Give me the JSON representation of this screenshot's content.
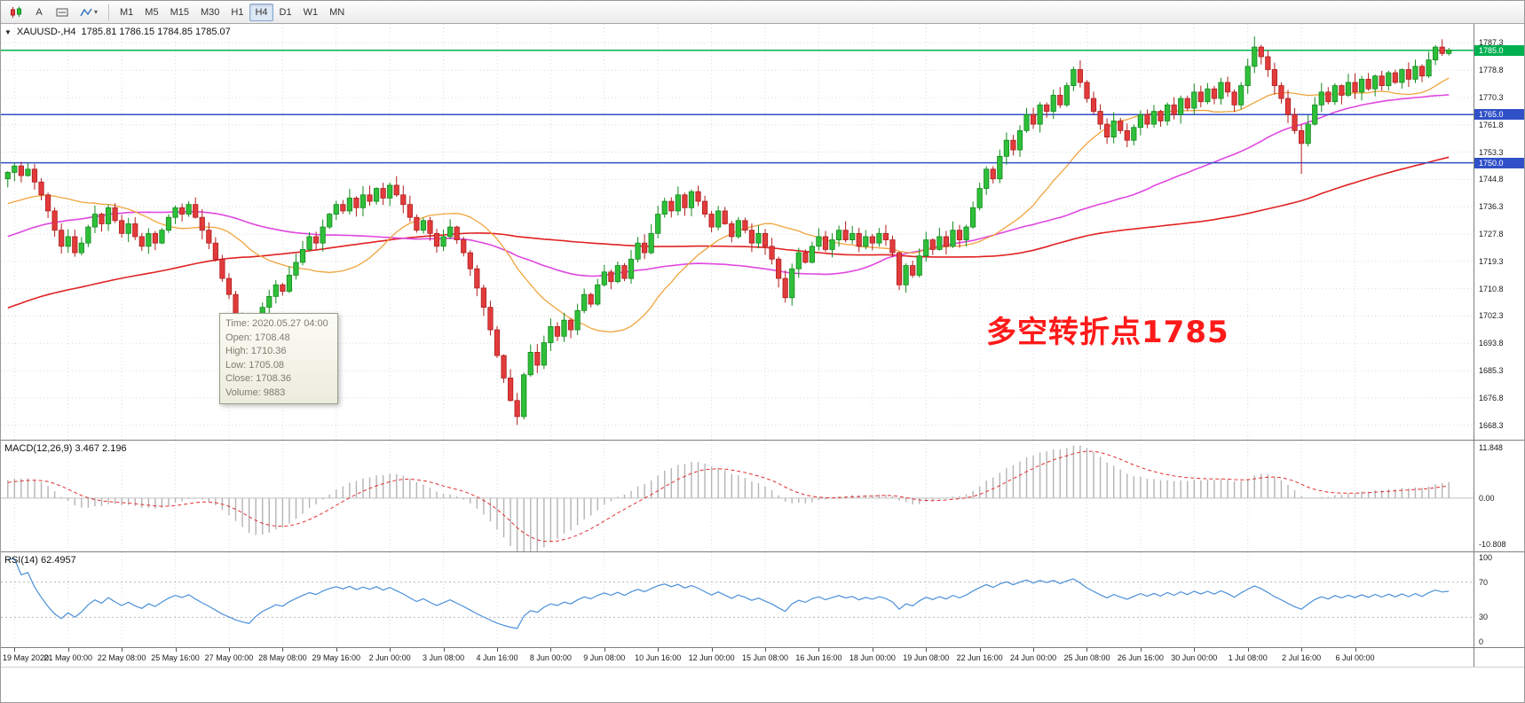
{
  "toolbar": {
    "icons": {
      "text_tool": "A",
      "caret": "▾"
    },
    "timeframes": [
      "M1",
      "M5",
      "M15",
      "M30",
      "H1",
      "H4",
      "D1",
      "W1",
      "MN"
    ],
    "active_timeframe": "H4"
  },
  "main_chart": {
    "collapse_icon": "▼",
    "symbol": "XAUUSD-,H4",
    "ohlc_text": "1785.81 1786.15 1784.85 1785.07",
    "annotation": "多空转折点1785",
    "price_labels": [
      1787.3,
      1778.8,
      1770.3,
      1761.8,
      1753.3,
      1744.8,
      1736.3,
      1727.8,
      1719.3,
      1710.8,
      1702.3,
      1693.8,
      1685.3,
      1676.8,
      1668.3
    ],
    "hlines": [
      {
        "price": 1785.0,
        "badge": "1785.0",
        "color": "#00b050"
      },
      {
        "price": 1765.0,
        "badge": "1765.0",
        "color": "#3050c8"
      },
      {
        "price": 1750.0,
        "badge": "1750.0",
        "color": "#3050c8"
      }
    ],
    "tooltip": {
      "lines": [
        "Time: 2020.05.27 04:00",
        "Open: 1708.48",
        "High: 1710.36",
        "Low: 1705.08",
        "Close: 1708.36",
        "Volume: 9883"
      ]
    }
  },
  "macd": {
    "header": "MACD(12,26,9) 3.467 2.196",
    "scale": [
      {
        "text": "11.848",
        "value": 11.848
      },
      {
        "text": "0.00",
        "value": 0
      },
      {
        "text": "-10.808",
        "value": -10.808
      }
    ],
    "range": [
      -12.4,
      13.4
    ]
  },
  "rsi": {
    "header": "RSI(14) 62.4957",
    "scale": [
      {
        "text": "100",
        "value": 100
      },
      {
        "text": "70",
        "value": 70
      },
      {
        "text": "30",
        "value": 30
      },
      {
        "text": "0",
        "value": 0
      }
    ],
    "levels": [
      70,
      30
    ],
    "range": [
      -4,
      104
    ]
  },
  "time_axis": {
    "start_bar": 1,
    "step": 8,
    "labels": [
      "19 May 2020",
      "21 May 00:00",
      "22 May 08:00",
      "25 May 16:00",
      "27 May 00:00",
      "28 May 08:00",
      "29 May 16:00",
      "2 Jun 00:00",
      "3 Jun 08:00",
      "4 Jun 16:00",
      "8 Jun 00:00",
      "9 Jun 08:00",
      "10 Jun 16:00",
      "12 Jun 00:00",
      "15 Jun 08:00",
      "16 Jun 16:00",
      "18 Jun 00:00",
      "19 Jun 08:00",
      "22 Jun 16:00",
      "24 Jun 00:00",
      "25 Jun 08:00",
      "26 Jun 16:00",
      "30 Jun 00:00",
      "1 Jul 08:00",
      "2 Jul 16:00",
      "6 Jul 00:00"
    ]
  },
  "chart_data": {
    "type": "candlestick",
    "symbol": "XAUUSD",
    "timeframe": "H4",
    "first_open": 1745.0,
    "price_range": [
      1663.8,
      1793.2
    ],
    "closes": [
      1747,
      1749,
      1746,
      1748,
      1744,
      1740,
      1735,
      1729,
      1724,
      1727,
      1722,
      1725,
      1730,
      1734,
      1731,
      1736,
      1732,
      1728,
      1731,
      1727,
      1724,
      1728,
      1725,
      1729,
      1733,
      1736,
      1734,
      1737,
      1733,
      1729,
      1725,
      1720,
      1714,
      1709,
      1703,
      1698,
      1694,
      1700,
      1705,
      1708.4,
      1712,
      1710,
      1715,
      1719,
      1723,
      1727,
      1725,
      1730,
      1734,
      1737,
      1735,
      1739,
      1736,
      1740,
      1738,
      1742,
      1739,
      1743,
      1740,
      1737,
      1733,
      1729,
      1732,
      1728,
      1724,
      1727,
      1730,
      1726,
      1722,
      1717,
      1711,
      1705,
      1698,
      1690,
      1683,
      1676,
      1671,
      1684,
      1691,
      1687,
      1694,
      1699,
      1696,
      1701,
      1698,
      1704,
      1709,
      1706,
      1712,
      1716,
      1713,
      1718,
      1714,
      1720,
      1725,
      1722,
      1728,
      1734,
      1738,
      1735,
      1740,
      1736,
      1741,
      1738,
      1734,
      1730,
      1735,
      1731,
      1727,
      1732,
      1729,
      1725,
      1728,
      1724,
      1720,
      1714,
      1708,
      1717,
      1722,
      1719,
      1724,
      1727,
      1723,
      1726,
      1729,
      1726,
      1728,
      1724,
      1727,
      1725,
      1728,
      1726,
      1722,
      1712,
      1718,
      1715,
      1721,
      1726,
      1723,
      1727,
      1724,
      1729,
      1726,
      1730,
      1736,
      1742,
      1748,
      1745,
      1752,
      1757,
      1754,
      1760,
      1765,
      1762,
      1768,
      1766,
      1771,
      1768,
      1774,
      1779,
      1775,
      1770,
      1766,
      1762,
      1758,
      1763,
      1760,
      1757,
      1761,
      1765,
      1762,
      1766,
      1763,
      1768,
      1765,
      1770,
      1767,
      1772,
      1769,
      1773,
      1770,
      1775,
      1772,
      1768,
      1774,
      1780,
      1786,
      1783,
      1779,
      1774,
      1770,
      1765,
      1760,
      1756,
      1762,
      1768,
      1772,
      1769,
      1774,
      1771,
      1775,
      1772,
      1776,
      1773,
      1777,
      1774,
      1778,
      1775,
      1779,
      1776,
      1780,
      1777,
      1782,
      1786,
      1784,
      1785.1
    ],
    "wick_overrides": {
      "high": {
        "186": 1789.3
      },
      "low": {
        "76": 1668.4,
        "193": 1746.5
      }
    },
    "ma_periods": {
      "orange": 21,
      "magenta": 55,
      "red": 120
    }
  },
  "colors": {
    "bull": "#2fbf3a",
    "bull_edge": "#128a1c",
    "bear": "#e23b3b",
    "bear_edge": "#b01e1e",
    "ma_orange": "#f0a43c",
    "ma_magenta": "#e048e0",
    "ma_red": "#e02222",
    "macd_hist": "#b4b4b4",
    "macd_signal": "#e03030",
    "rsi_line": "#4a90d9",
    "grid": "#dcdcdc",
    "annotation": "#ff1a1a"
  }
}
